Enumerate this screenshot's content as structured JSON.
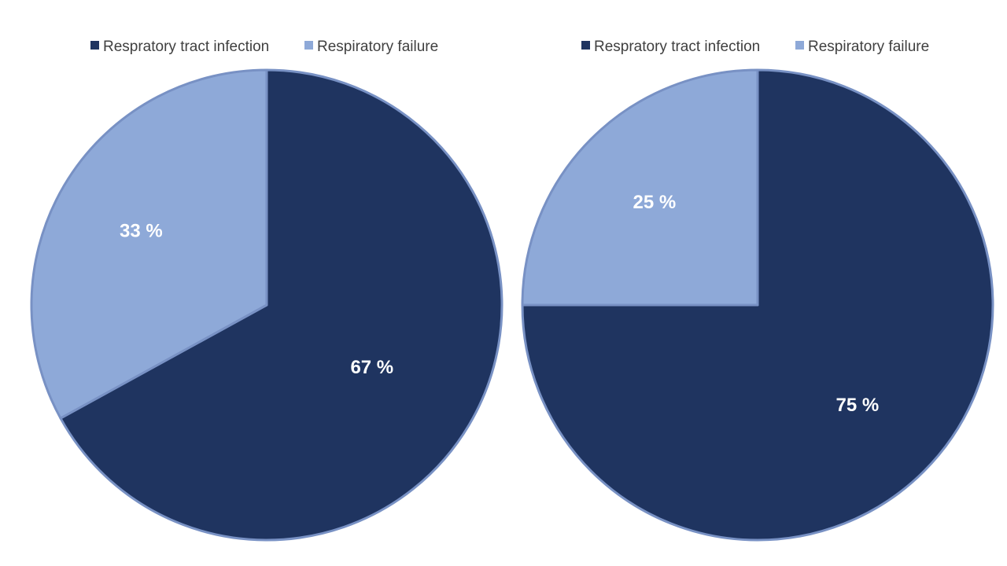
{
  "colors": {
    "dark": "#1f3460",
    "light": "#8ea9d8",
    "slice_border": "#7891c4"
  },
  "chart_data": [
    {
      "type": "pie",
      "categories": [
        "Respratory tract infection",
        "Respiratory failure"
      ],
      "values": [
        67,
        33
      ],
      "labels": [
        "67 %",
        "33 %"
      ],
      "colors": [
        "#1f3460",
        "#8ea9d8"
      ],
      "legend": {
        "position": "top",
        "entries": [
          "Respratory tract infection",
          "Respiratory failure"
        ]
      }
    },
    {
      "type": "pie",
      "categories": [
        "Respratory tract infection",
        "Respiratory failure"
      ],
      "values": [
        75,
        25
      ],
      "labels": [
        "75 %",
        "25 %"
      ],
      "colors": [
        "#1f3460",
        "#8ea9d8"
      ],
      "legend": {
        "position": "top",
        "entries": [
          "Respratory tract infection",
          "Respiratory failure"
        ]
      }
    }
  ]
}
